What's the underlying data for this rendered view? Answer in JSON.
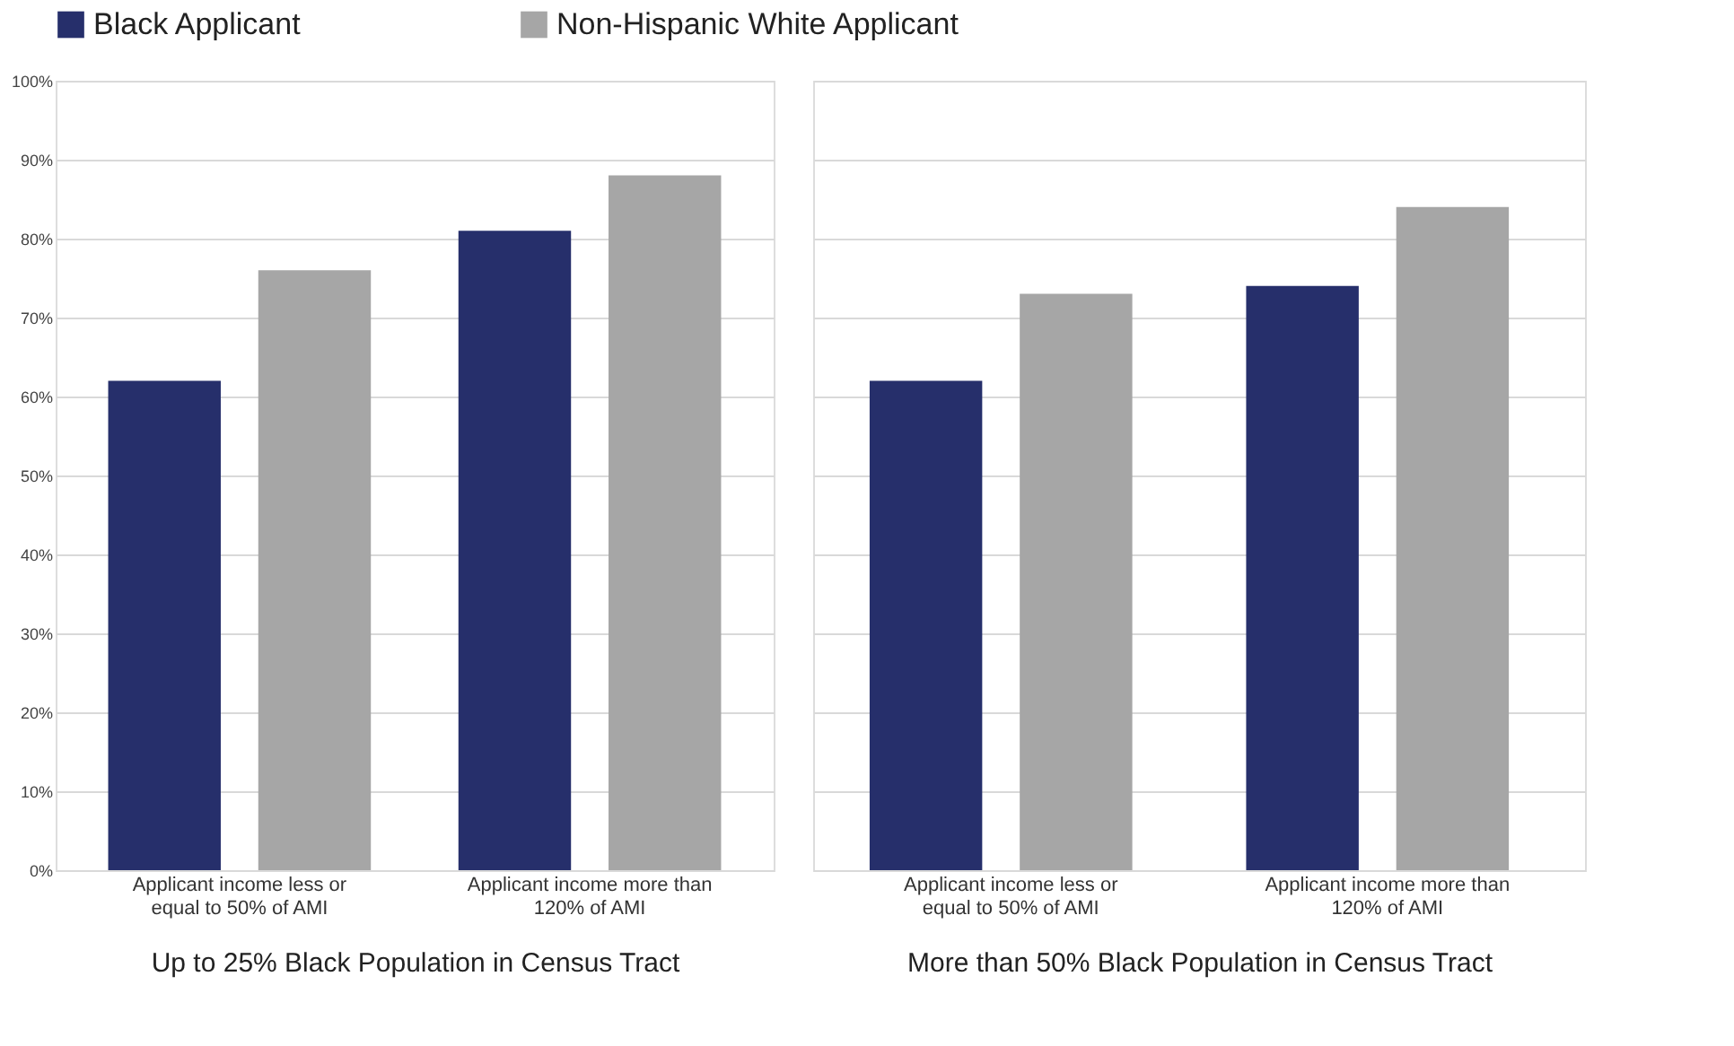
{
  "chart_data": [
    {
      "type": "bar",
      "categories": [
        "Applicant income less or equal to 50% of AMI",
        "Applicant income more than 120% of AMI"
      ],
      "xlabel": "Up to 25% Black Population in Census Tract",
      "series": [
        {
          "name": "Black Applicant",
          "color": "#262f6b",
          "values": [
            62,
            81
          ]
        },
        {
          "name": "Non-Hispanic White Applicant",
          "color": "#a6a6a6",
          "values": [
            76,
            88
          ]
        }
      ],
      "ylim": [
        0,
        100
      ],
      "yticks": [
        {
          "value": 0,
          "label": "0%"
        },
        {
          "value": 10,
          "label": "10%"
        },
        {
          "value": 20,
          "label": "20%"
        },
        {
          "value": 30,
          "label": "30%"
        },
        {
          "value": 40,
          "label": "40%"
        },
        {
          "value": 50,
          "label": "50%"
        },
        {
          "value": 60,
          "label": "60%"
        },
        {
          "value": 70,
          "label": "70%"
        },
        {
          "value": 80,
          "label": "80%"
        },
        {
          "value": 90,
          "label": "90%"
        },
        {
          "value": 100,
          "label": "100%"
        }
      ],
      "grid": "y",
      "legend": "top"
    },
    {
      "type": "bar",
      "categories": [
        "Applicant income less or equal to 50% of AMI",
        "Applicant income more than 120% of AMI"
      ],
      "xlabel": "More than 50% Black Population in Census Tract",
      "series": [
        {
          "color": "#262f6b",
          "values": [
            62,
            74
          ]
        },
        {
          "color": "#a6a6a6",
          "values": [
            73,
            84
          ]
        }
      ],
      "ylim": [
        0,
        100
      ],
      "yticks": [
        {
          "value": 0,
          "label": null
        },
        {
          "value": 10,
          "label": null
        },
        {
          "value": 20,
          "label": null
        },
        {
          "value": 30,
          "label": null
        },
        {
          "value": 40,
          "label": null
        },
        {
          "value": 50,
          "label": null
        },
        {
          "value": 60,
          "label": null
        },
        {
          "value": 70,
          "label": null
        },
        {
          "value": 80,
          "label": null
        },
        {
          "value": 90,
          "label": null
        },
        {
          "value": 100,
          "label": null
        }
      ],
      "grid": "y",
      "tick_labels": "x"
    }
  ]
}
